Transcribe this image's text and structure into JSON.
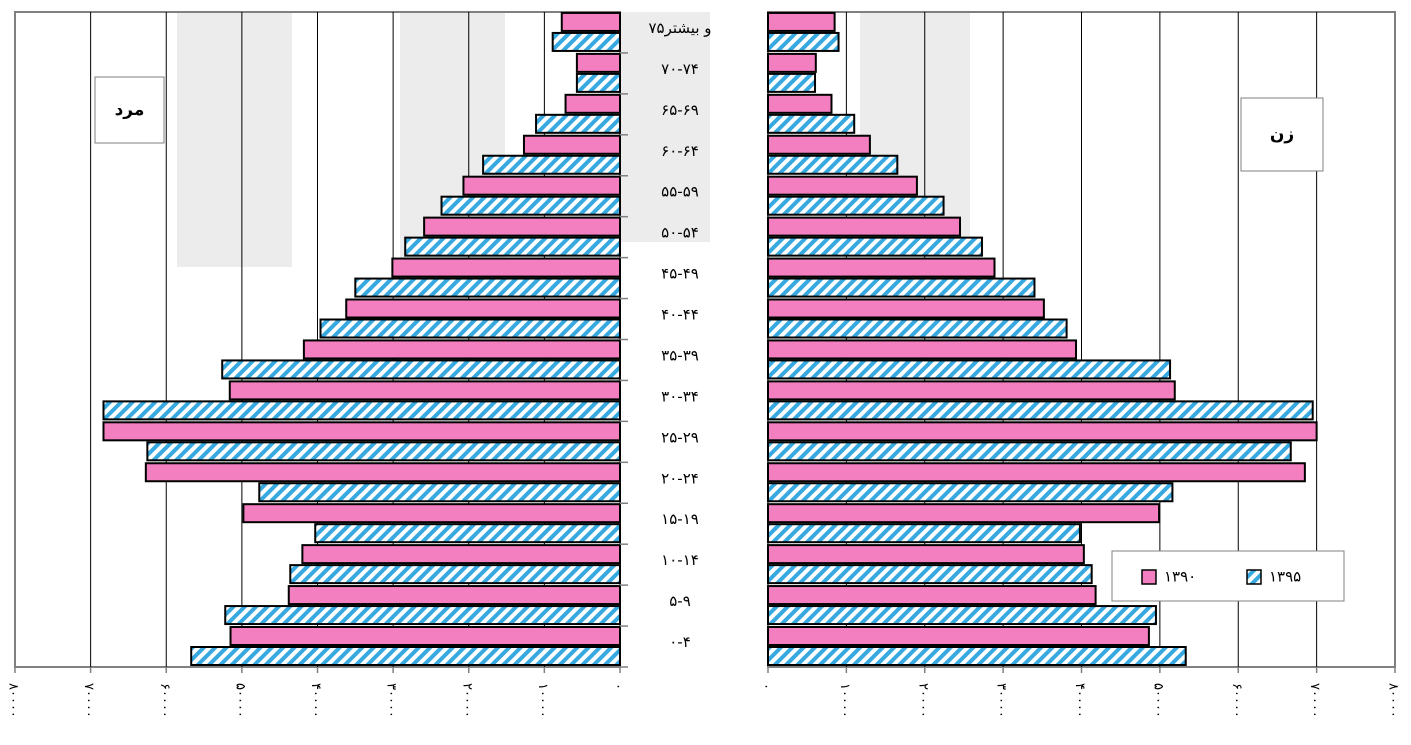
{
  "colors": {
    "bar_1390": "#f47fc0",
    "bar_1395_stripe": "#37a9e0",
    "bar_1395_bg": "#ffffff",
    "stroke": "#000000",
    "grid": "#000000",
    "axis": "#808080"
  },
  "chart_data": {
    "type": "bar",
    "orientation": "horizontal",
    "subtype": "population-pyramid",
    "title": "",
    "categories": [
      "۰-۴",
      "۵-۹",
      "۱۰-۱۴",
      "۱۵-۱۹",
      "۲۰-۲۴",
      "۲۵-۲۹",
      "۳۰-۳۴",
      "۳۵-۳۹",
      "۴۰-۴۴",
      "۴۵-۴۹",
      "۵۰-۵۴",
      "۵۵-۵۹",
      "۶۰-۶۴",
      "۶۵-۶۹",
      "۷۰-۷۴",
      "۷۵و بیشتر"
    ],
    "legend": [
      "۱۳۹۰",
      "۱۳۹۵"
    ],
    "legend_placement": "bottom-right of right panel",
    "panels": [
      {
        "label": "مرد",
        "side": "left",
        "xlim": [
          0,
          80000
        ],
        "ticks": [
          "۰",
          "۱۰۰۰۰",
          "۲۰۰۰۰",
          "۳۰۰۰۰",
          "۴۰۰۰۰",
          "۵۰۰۰۰",
          "۶۰۰۰۰",
          "۷۰۰۰۰",
          "۸۰۰۰۰"
        ],
        "series": [
          {
            "name": "۱۳۹۰",
            "values": [
              51500,
              43800,
              42000,
              49800,
              62700,
              68300,
              51600,
              41800,
              36200,
              30100,
              25900,
              20700,
              12700,
              7200,
              5700,
              7700
            ]
          },
          {
            "name": "۱۳۹۵",
            "values": [
              56700,
              52200,
              43600,
              40300,
              47700,
              62500,
              68300,
              52600,
              39600,
              35000,
              28400,
              23600,
              18100,
              11100,
              5700,
              8900
            ]
          }
        ]
      },
      {
        "label": "زن",
        "side": "right",
        "xlim": [
          0,
          80000
        ],
        "ticks": [
          "۰",
          "۱۰۰۰۰",
          "۲۰۰۰۰",
          "۳۰۰۰۰",
          "۴۰۰۰۰",
          "۵۰۰۰۰",
          "۶۰۰۰۰",
          "۷۰۰۰۰",
          "۸۰۰۰۰"
        ],
        "series": [
          {
            "name": "۱۳۹۰",
            "values": [
              48600,
              41800,
              40300,
              49900,
              68500,
              70000,
              51900,
              39300,
              35200,
              28900,
              24500,
              19000,
              13000,
              8100,
              6100,
              8500
            ]
          },
          {
            "name": "۱۳۹۵",
            "values": [
              53300,
              49500,
              41300,
              39800,
              51600,
              66700,
              69500,
              51300,
              38100,
              34000,
              27300,
              22400,
              16500,
              11000,
              6000,
              9000
            ]
          }
        ]
      }
    ]
  }
}
